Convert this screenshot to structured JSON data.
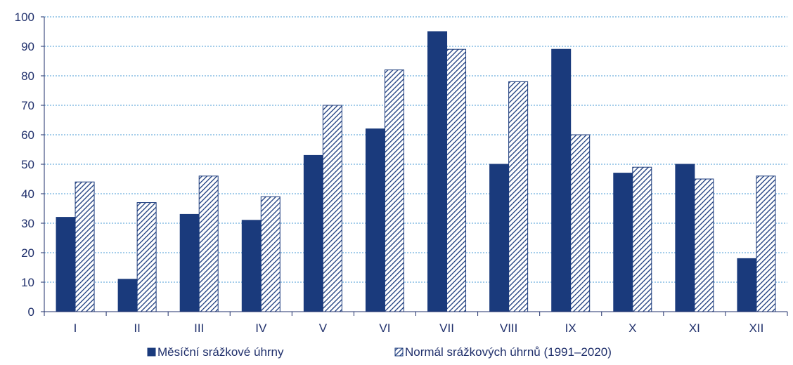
{
  "chart_data": {
    "type": "bar",
    "categories": [
      "I",
      "II",
      "III",
      "IV",
      "V",
      "VI",
      "VII",
      "VIII",
      "IX",
      "X",
      "XI",
      "XII"
    ],
    "series": [
      {
        "name": "Měsíční srážkové úhrny",
        "values": [
          32,
          11,
          33,
          31,
          53,
          62,
          95,
          50,
          89,
          47,
          50,
          18
        ],
        "color": "#1a3a7c",
        "pattern": "solid"
      },
      {
        "name": "Normál srážkových úhrnů (1991–2020)",
        "values": [
          44,
          37,
          46,
          39,
          70,
          82,
          89,
          78,
          60,
          49,
          45,
          46
        ],
        "color": "#1a3a7c",
        "pattern": "diagonal-hatch"
      }
    ],
    "yticks": [
      0,
      10,
      20,
      30,
      40,
      50,
      60,
      70,
      80,
      90,
      100
    ],
    "ylim": [
      0,
      100
    ],
    "grid": true,
    "legend_position": "bottom"
  }
}
